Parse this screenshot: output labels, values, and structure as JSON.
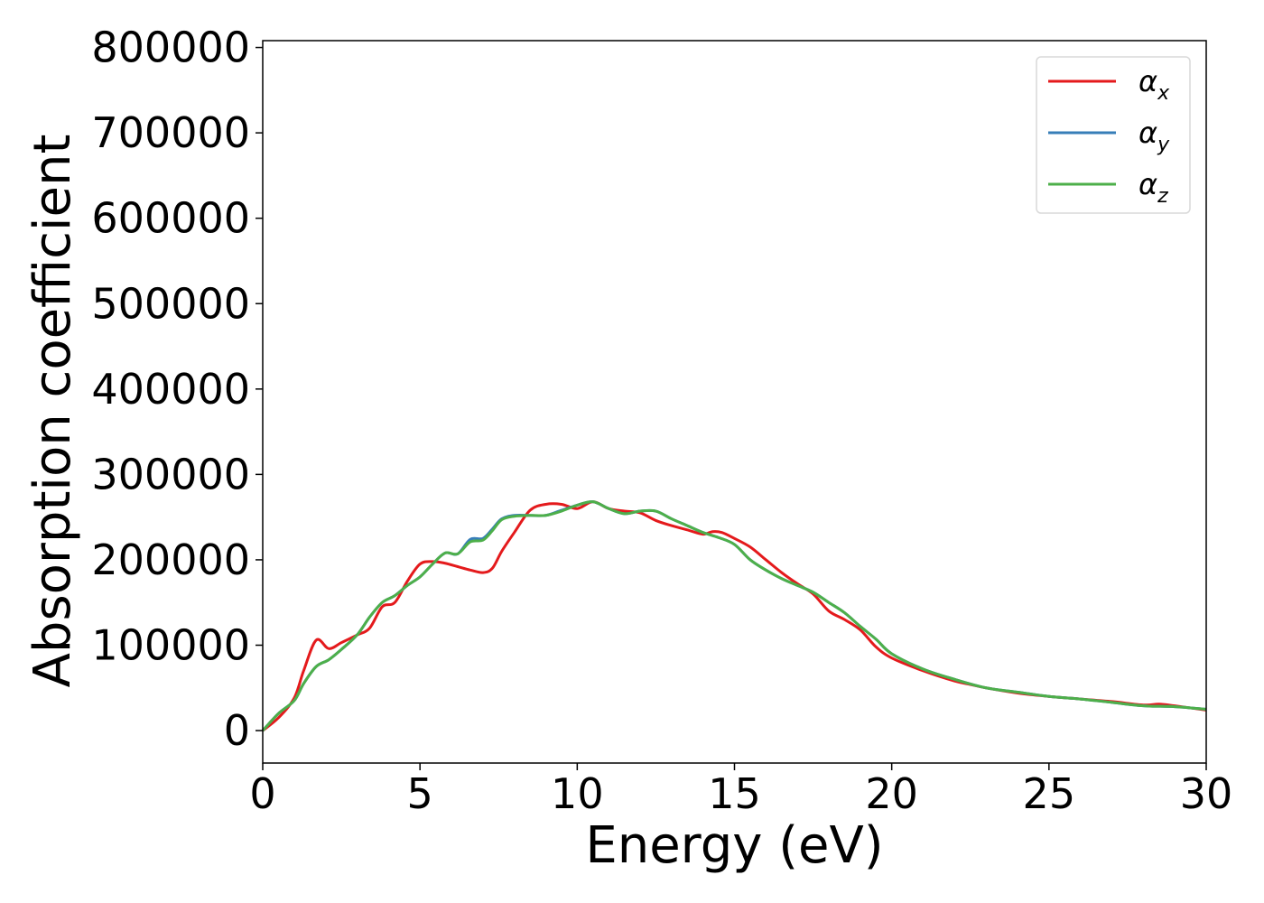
{
  "chart_data": {
    "type": "line",
    "title": "",
    "xlabel": "Energy (eV)",
    "ylabel": "Absorption coefficient",
    "xlim": [
      0,
      30
    ],
    "ylim": [
      -38000,
      808000
    ],
    "xticks": [
      0,
      5,
      10,
      15,
      20,
      25,
      30
    ],
    "yticks": [
      0,
      100000,
      200000,
      300000,
      400000,
      500000,
      600000,
      700000,
      800000
    ],
    "grid": false,
    "legend_position": "top-right",
    "series": [
      {
        "name": "αx",
        "symbol": "α",
        "subscript": "x",
        "color": "#e41a1c",
        "x": [
          0,
          0.5,
          1.0,
          1.3,
          1.7,
          2.1,
          2.5,
          3.0,
          3.4,
          3.8,
          4.2,
          4.6,
          5.0,
          5.4,
          5.8,
          6.2,
          6.6,
          7.0,
          7.3,
          7.6,
          8.0,
          8.5,
          9.0,
          9.5,
          10.0,
          10.5,
          11.0,
          11.5,
          12.0,
          12.5,
          13.0,
          13.5,
          14.0,
          14.3,
          14.6,
          15.0,
          15.5,
          16.0,
          16.5,
          17.0,
          17.5,
          18.0,
          18.5,
          19.0,
          19.5,
          20.0,
          21.0,
          22.0,
          22.5,
          23.0,
          24.0,
          25.0,
          26.0,
          27.0,
          28.0,
          28.5,
          29.0,
          30.0
        ],
        "y": [
          0,
          15000,
          38000,
          70000,
          106000,
          96000,
          103000,
          112000,
          120000,
          145000,
          150000,
          175000,
          195000,
          198000,
          196000,
          192000,
          188000,
          185000,
          190000,
          210000,
          232000,
          258000,
          265000,
          265000,
          260000,
          268000,
          260000,
          257000,
          255000,
          246000,
          240000,
          235000,
          230000,
          233000,
          232000,
          225000,
          215000,
          200000,
          185000,
          172000,
          160000,
          140000,
          130000,
          118000,
          98000,
          85000,
          70000,
          58000,
          54000,
          50000,
          44000,
          40000,
          37000,
          34000,
          30000,
          31000,
          29000,
          24000
        ]
      },
      {
        "name": "αy",
        "symbol": "α",
        "subscript": "y",
        "color": "#377eb8",
        "x": [
          0,
          0.5,
          1.0,
          1.3,
          1.7,
          2.1,
          2.5,
          3.0,
          3.4,
          3.8,
          4.2,
          4.6,
          5.0,
          5.4,
          5.8,
          6.2,
          6.6,
          7.0,
          7.3,
          7.6,
          8.0,
          8.5,
          9.0,
          9.5,
          10.0,
          10.5,
          11.0,
          11.5,
          12.0,
          12.5,
          13.0,
          13.5,
          14.0,
          14.5,
          15.0,
          15.5,
          16.0,
          16.5,
          17.0,
          17.5,
          18.0,
          18.5,
          19.0,
          19.5,
          20.0,
          21.0,
          22.0,
          23.0,
          24.0,
          25.0,
          26.0,
          27.0,
          28.0,
          29.0,
          30.0
        ],
        "y": [
          0,
          20000,
          35000,
          55000,
          75000,
          83000,
          95000,
          112000,
          133000,
          150000,
          158000,
          170000,
          180000,
          195000,
          208000,
          207000,
          224000,
          225000,
          236000,
          248000,
          252000,
          252000,
          252000,
          258000,
          264000,
          268000,
          260000,
          254000,
          257000,
          257000,
          248000,
          240000,
          232000,
          226000,
          218000,
          200000,
          188000,
          178000,
          170000,
          162000,
          150000,
          138000,
          122000,
          107000,
          90000,
          72000,
          60000,
          50000,
          45000,
          40000,
          37000,
          33000,
          29000,
          28000,
          25000
        ]
      },
      {
        "name": "αz",
        "symbol": "α",
        "subscript": "z",
        "color": "#4daf4a",
        "x": [
          0,
          0.5,
          1.0,
          1.3,
          1.7,
          2.1,
          2.5,
          3.0,
          3.4,
          3.8,
          4.2,
          4.6,
          5.0,
          5.4,
          5.8,
          6.2,
          6.6,
          7.0,
          7.3,
          7.6,
          8.0,
          8.5,
          9.0,
          9.5,
          10.0,
          10.5,
          11.0,
          11.5,
          12.0,
          12.5,
          13.0,
          13.5,
          14.0,
          14.5,
          15.0,
          15.5,
          16.0,
          16.5,
          17.0,
          17.5,
          18.0,
          18.5,
          19.0,
          19.5,
          20.0,
          21.0,
          22.0,
          23.0,
          24.0,
          25.0,
          26.0,
          27.0,
          28.0,
          29.0,
          30.0
        ],
        "y": [
          0,
          20000,
          35000,
          55000,
          75000,
          83000,
          95000,
          112000,
          133000,
          150000,
          158000,
          170000,
          180000,
          195000,
          208000,
          207000,
          221000,
          223000,
          234000,
          247000,
          251000,
          252000,
          252000,
          257000,
          264000,
          268000,
          260000,
          254000,
          257000,
          257000,
          248000,
          240000,
          232000,
          226000,
          218000,
          200000,
          188000,
          178000,
          170000,
          162000,
          150000,
          138000,
          122000,
          107000,
          90000,
          72000,
          60000,
          50000,
          45000,
          40000,
          37000,
          33000,
          29000,
          28000,
          25000
        ]
      }
    ]
  }
}
